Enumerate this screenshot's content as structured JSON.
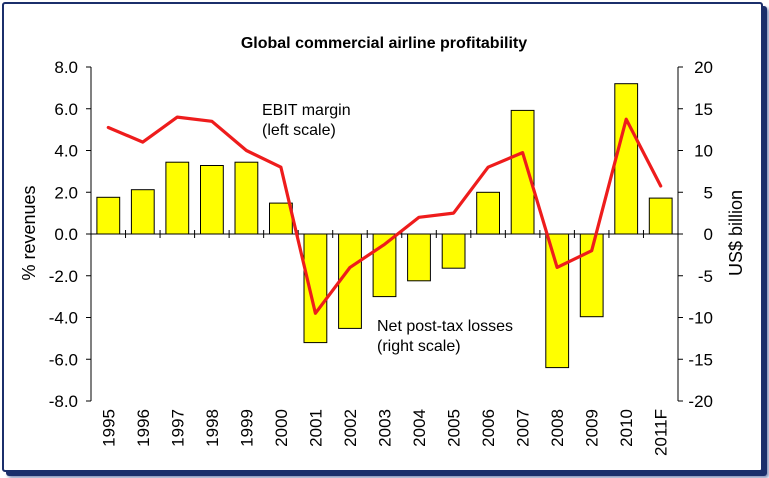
{
  "chart_data": {
    "type": "bar+line",
    "title": "Global commercial airline profitability",
    "categories": [
      "1995",
      "1996",
      "1997",
      "1998",
      "1999",
      "2000",
      "2001",
      "2002",
      "2003",
      "2004",
      "2005",
      "2006",
      "2007",
      "2008",
      "2009",
      "2010",
      "2011F"
    ],
    "series": [
      {
        "name": "Net post-tax losses",
        "annotation": [
          "Net post-tax losses",
          "(right scale)"
        ],
        "type": "bar",
        "axis": "right",
        "color": "#ffff00",
        "values": [
          4.4,
          5.3,
          8.6,
          8.2,
          8.6,
          3.7,
          -13.0,
          -11.3,
          -7.5,
          -5.6,
          -4.1,
          5.0,
          14.8,
          -16.0,
          -9.9,
          18.0,
          4.3
        ]
      },
      {
        "name": "EBIT margin",
        "annotation": [
          "EBIT margin",
          "(left scale)"
        ],
        "type": "line",
        "axis": "left",
        "color": "#ee1c1c",
        "values": [
          5.1,
          4.4,
          5.6,
          5.4,
          4.0,
          3.2,
          -3.8,
          -1.6,
          -0.5,
          0.8,
          1.0,
          3.2,
          3.9,
          -1.6,
          -0.8,
          5.5,
          2.3
        ]
      }
    ],
    "left_axis": {
      "label": "% revenues",
      "range": [
        -8,
        8
      ],
      "ticks": [
        "8.0",
        "6.0",
        "4.0",
        "2.0",
        "0.0",
        "-2.0",
        "-4.0",
        "-6.0",
        "-8.0"
      ]
    },
    "right_axis": {
      "label": "US$ billion",
      "range": [
        -20,
        20
      ],
      "ticks": [
        "20",
        "15",
        "10",
        "5",
        "0",
        "-5",
        "-10",
        "-15",
        "-20"
      ]
    },
    "grid": false,
    "legend": "none"
  }
}
